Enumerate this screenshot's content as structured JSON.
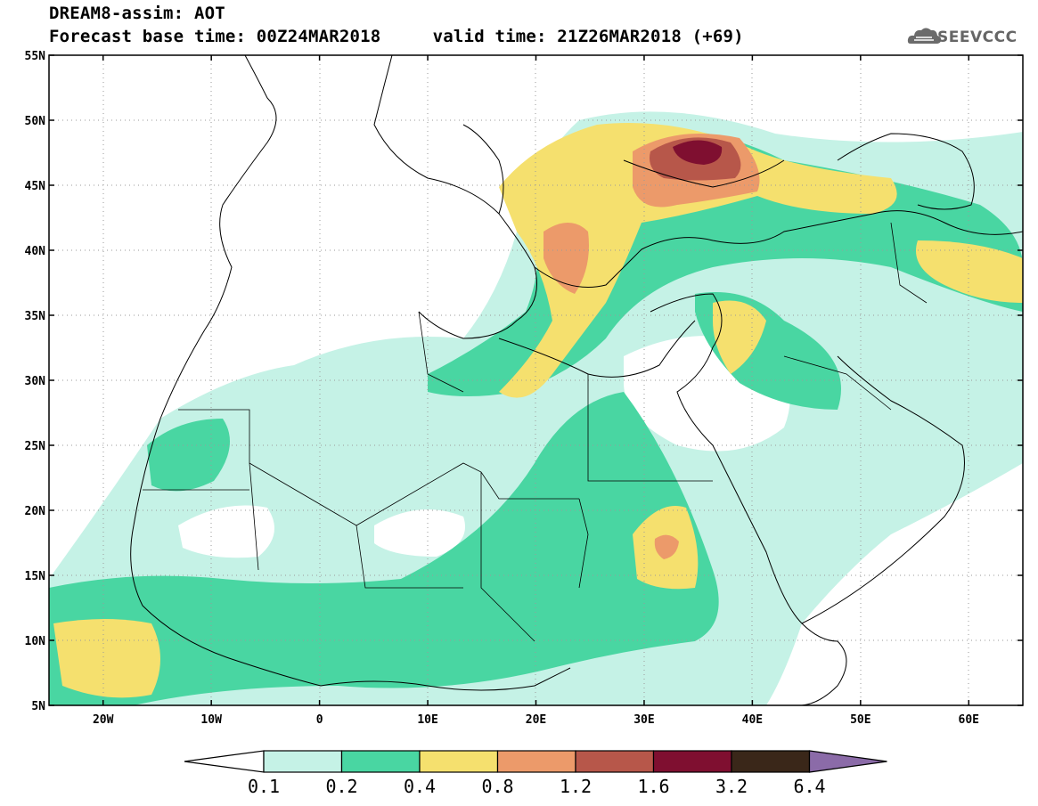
{
  "title": {
    "line1": "DREAM8-assim: AOT",
    "line2": "Forecast base time: 00Z24MAR2018     valid time: 21Z26MAR2018 (+69)"
  },
  "logo": {
    "text": "SEEVCCC",
    "icon": "cloud-icon"
  },
  "map": {
    "lon_range": [
      -25,
      65
    ],
    "lat_range": [
      5,
      55
    ],
    "lat_ticks": [
      "5N",
      "10N",
      "15N",
      "20N",
      "25N",
      "30N",
      "35N",
      "40N",
      "45N",
      "50N",
      "55N"
    ],
    "lon_ticks": [
      "20W",
      "10W",
      "0",
      "10E",
      "20E",
      "30E",
      "40E",
      "50E",
      "60E"
    ],
    "grid": "dotted"
  },
  "legend": {
    "levels": [
      "0.1",
      "0.2",
      "0.4",
      "0.8",
      "1.2",
      "1.6",
      "3.2",
      "6.4"
    ],
    "colors": [
      "#ffffff",
      "#c5f2e6",
      "#49d6a2",
      "#f5e06e",
      "#ec9a6a",
      "#b7574a",
      "#7f0f30",
      "#3a2719",
      "#8b6ba8"
    ]
  }
}
